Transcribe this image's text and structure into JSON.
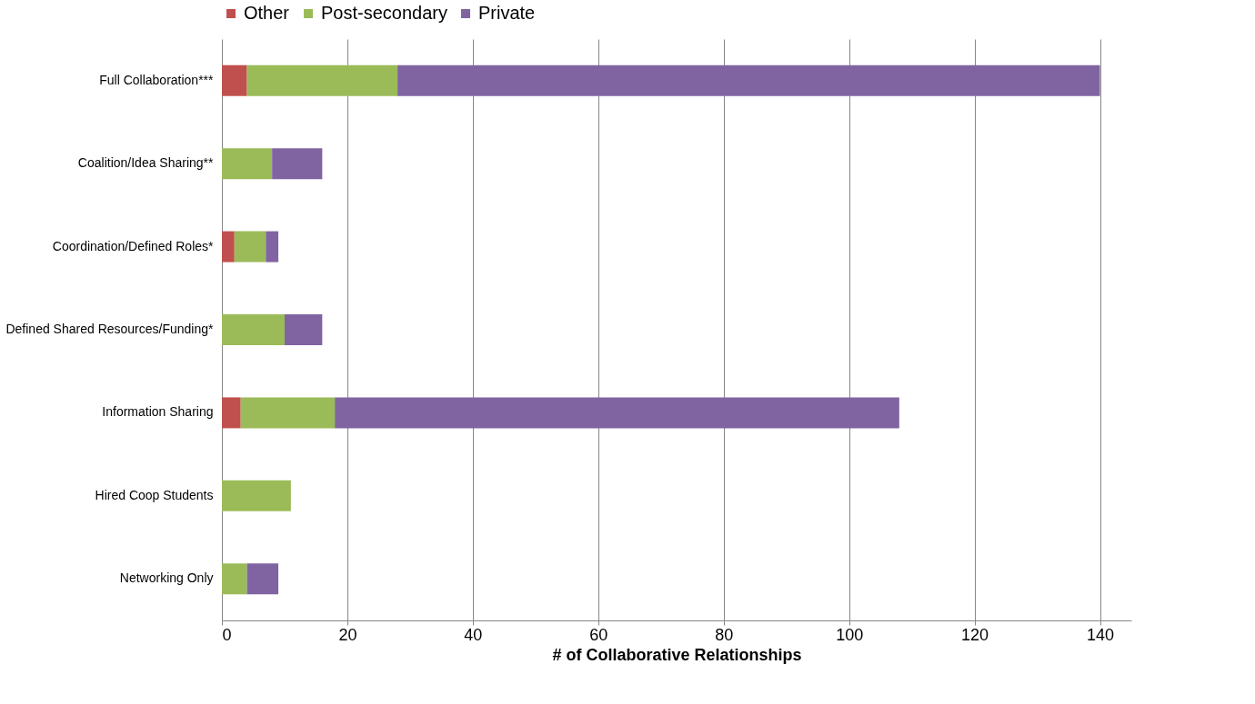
{
  "chart_data": {
    "type": "bar",
    "orientation": "horizontal",
    "stacked": true,
    "xlabel": "# of Collaborative Relationships",
    "categories": [
      "Full Collaboration***",
      "Coalition/Idea Sharing**",
      "Coordination/Defined Roles*",
      "Defined Shared Resources/Funding*",
      "Information Sharing",
      "Hired Coop Students",
      "Networking Only"
    ],
    "series": [
      {
        "name": "Other",
        "color": "#c0504d",
        "values": [
          4,
          null,
          2,
          null,
          3,
          null,
          null
        ]
      },
      {
        "name": "Post-secondary",
        "color": "#9bbb59",
        "values": [
          24,
          8,
          5,
          10,
          15,
          11,
          4
        ]
      },
      {
        "name": "Private",
        "color": "#8064a2",
        "values": [
          112,
          8,
          2,
          6,
          90,
          null,
          5
        ]
      }
    ],
    "xlim": [
      0,
      145
    ],
    "xticks": [
      0,
      20,
      40,
      60,
      80,
      100,
      120,
      140
    ],
    "grid": "x",
    "legend": "top"
  }
}
